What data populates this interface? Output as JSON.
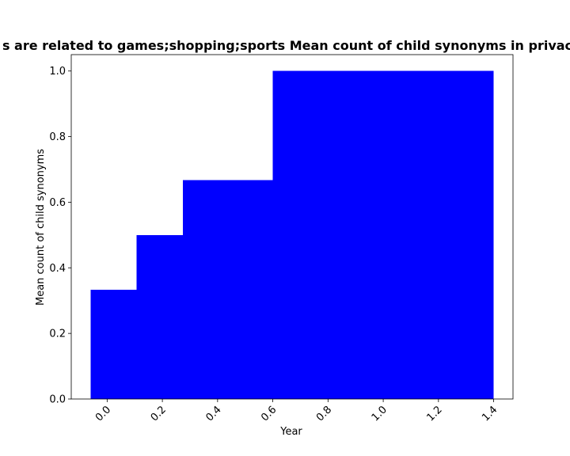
{
  "chart_data": {
    "type": "bar",
    "title": "s are related to games;shopping;sports Mean count of child synonyms in privac",
    "xlabel": "Year",
    "ylabel": "Mean count of child synonyms",
    "xlim": [
      -0.13,
      1.47
    ],
    "ylim": [
      0,
      1.05
    ],
    "xticks": [
      "0.0",
      "0.2",
      "0.4",
      "0.6",
      "0.8",
      "1.0",
      "1.2",
      "1.4"
    ],
    "xtick_values": [
      0.0,
      0.2,
      0.4,
      0.6,
      0.8,
      1.0,
      1.2,
      1.4
    ],
    "yticks": [
      "0.0",
      "0.2",
      "0.4",
      "0.6",
      "0.8",
      "1.0"
    ],
    "ytick_values": [
      0.0,
      0.2,
      0.4,
      0.6,
      0.8,
      1.0
    ],
    "grid": false,
    "bar_color": "#0000ff",
    "bars": [
      {
        "x_start": -0.06,
        "x_end": 0.107,
        "value": 0.333
      },
      {
        "x_start": 0.107,
        "x_end": 0.274,
        "value": 0.5
      },
      {
        "x_start": 0.274,
        "x_end": 0.6,
        "value": 0.667
      },
      {
        "x_start": 0.6,
        "x_end": 1.4,
        "value": 1.0
      }
    ]
  }
}
